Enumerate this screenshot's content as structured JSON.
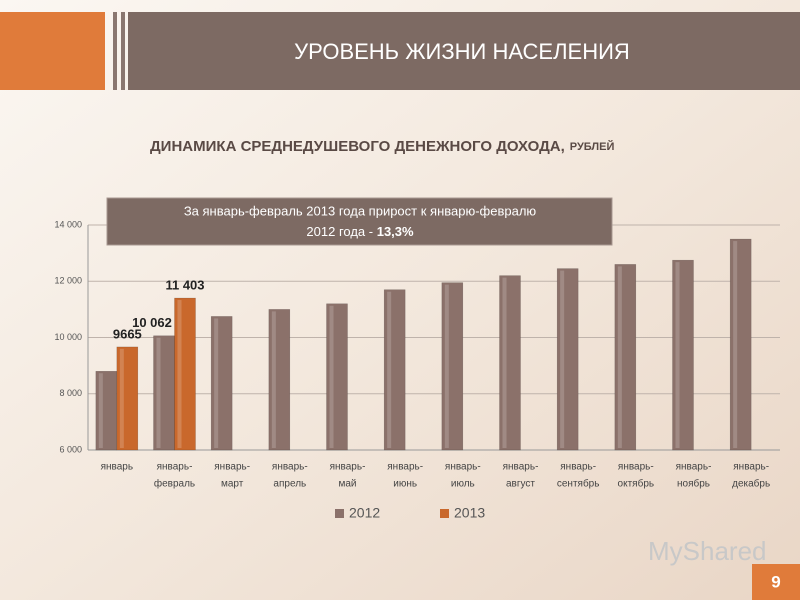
{
  "header": {
    "title": "УРОВЕНЬ ЖИЗНИ НАСЕЛЕНИЯ"
  },
  "chart_data": {
    "type": "bar",
    "title": "ДИНАМИКА СРЕДНЕДУШЕВОГО ДЕНЕЖНОГО ДОХОДА,",
    "subtitle": "РУБЛЕЙ",
    "annotation": {
      "text": "За январь-февраль 2013 года прирост к январю-февралю",
      "text2": "2012 года - ",
      "highlight": "13,3%"
    },
    "categories": [
      [
        "январь"
      ],
      [
        "январь-",
        "февраль"
      ],
      [
        "январь-",
        "март"
      ],
      [
        "январь-",
        "апрель"
      ],
      [
        "январь-",
        "май"
      ],
      [
        "январь-",
        "июнь"
      ],
      [
        "январь-",
        "июль"
      ],
      [
        "январь-",
        "август"
      ],
      [
        "январь-",
        "сентябрь"
      ],
      [
        "январь-",
        "октябрь"
      ],
      [
        "январь-",
        "ноябрь"
      ],
      [
        "январь-",
        "декабрь"
      ]
    ],
    "series": [
      {
        "name": "2012",
        "color": "#8b716a",
        "values": [
          8800,
          10062,
          10750,
          11000,
          11200,
          11700,
          11950,
          12200,
          12450,
          12600,
          12750,
          13500
        ],
        "value_labels": [
          null,
          "10 062",
          null,
          null,
          null,
          null,
          null,
          null,
          null,
          null,
          null,
          null
        ]
      },
      {
        "name": "2013",
        "color": "#c9682c",
        "values": [
          9665,
          11403,
          null,
          null,
          null,
          null,
          null,
          null,
          null,
          null,
          null,
          null
        ],
        "value_labels": [
          "9665",
          "11 403",
          null,
          null,
          null,
          null,
          null,
          null,
          null,
          null,
          null,
          null
        ]
      }
    ],
    "ylim": [
      6000,
      14000
    ],
    "yticks": [
      {
        "value": 6000,
        "label": "6 000"
      },
      {
        "value": 8000,
        "label": "8 000"
      },
      {
        "value": 10000,
        "label": "10 000"
      },
      {
        "value": 12000,
        "label": "12 000"
      },
      {
        "value": 14000,
        "label": "14 000"
      }
    ],
    "grid": true
  },
  "footer": {
    "watermark": "MyShared",
    "page": "9"
  }
}
